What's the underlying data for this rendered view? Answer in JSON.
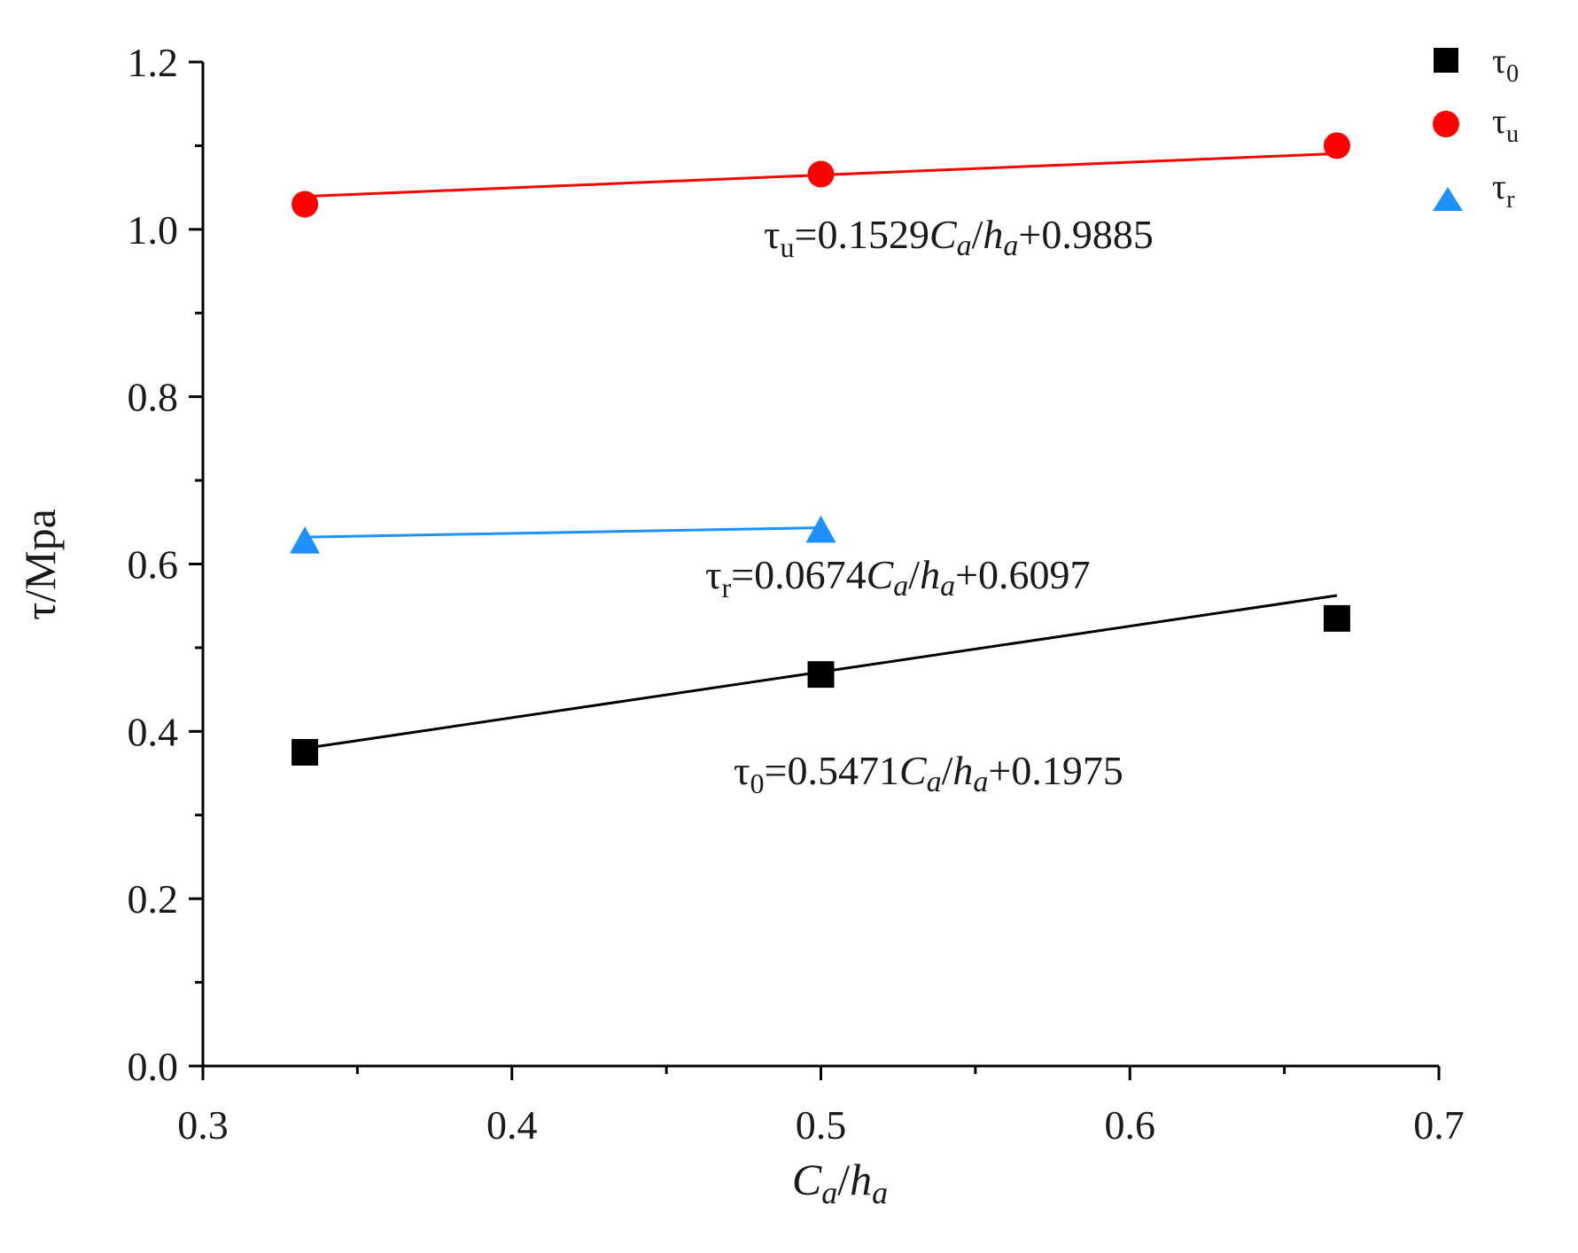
{
  "chart_data": {
    "type": "scatter",
    "title": "",
    "xlabel": "C_a/h_a",
    "ylabel": "τ/Mpa",
    "xlim": [
      0.3,
      0.7
    ],
    "ylim": [
      0.0,
      1.2
    ],
    "x_ticks": [
      "0.3",
      "0.4",
      "0.5",
      "0.6",
      "0.7"
    ],
    "y_ticks": [
      "0.0",
      "0.2",
      "0.4",
      "0.6",
      "0.8",
      "1.0",
      "1.2"
    ],
    "legend_position": "top-right",
    "series": [
      {
        "name": "τ0",
        "legend_base": "τ",
        "legend_sub": "0",
        "marker": "square",
        "color": "#000000",
        "x": [
          0.333,
          0.5,
          0.667
        ],
        "y": [
          0.375,
          0.468,
          0.535
        ],
        "fit": {
          "slope": 0.5471,
          "intercept": 0.1975
        },
        "equation": {
          "lhs": "τ",
          "sub": "0",
          "eq": "=0.5471",
          "var1": "C",
          "var1_sub": "a",
          "slash": "/",
          "var2": "h",
          "var2_sub": "a",
          "tail": "+0.1975"
        }
      },
      {
        "name": "τu",
        "legend_base": "τ",
        "legend_sub": "u",
        "marker": "circle",
        "color": "#ff0000",
        "x": [
          0.333,
          0.5,
          0.667
        ],
        "y": [
          1.03,
          1.066,
          1.1
        ],
        "fit": {
          "slope": 0.1529,
          "intercept": 0.9885
        },
        "equation": {
          "lhs": "τ",
          "sub": "u",
          "eq": "=0.1529",
          "var1": "C",
          "var1_sub": "a",
          "slash": "/",
          "var2": "h",
          "var2_sub": "a",
          "tail": "+0.9885"
        }
      },
      {
        "name": "τr",
        "legend_base": "τ",
        "legend_sub": "r",
        "marker": "triangle",
        "color": "#1e90ff",
        "x": [
          0.333,
          0.5
        ],
        "y": [
          0.627,
          0.64
        ],
        "fit": {
          "slope": 0.0674,
          "intercept": 0.6097
        },
        "equation": {
          "lhs": "τ",
          "sub": "r",
          "eq": "=0.0674",
          "var1": "C",
          "var1_sub": "a",
          "slash": "/",
          "var2": "h",
          "var2_sub": "a",
          "tail": "+0.6097"
        }
      }
    ]
  },
  "labels": {
    "y_axis": "τ/Mpa",
    "x_axis_var1": "C",
    "x_axis_var1_sub": "a",
    "x_axis_slash": "/",
    "x_axis_var2": "h",
    "x_axis_var2_sub": "a"
  }
}
